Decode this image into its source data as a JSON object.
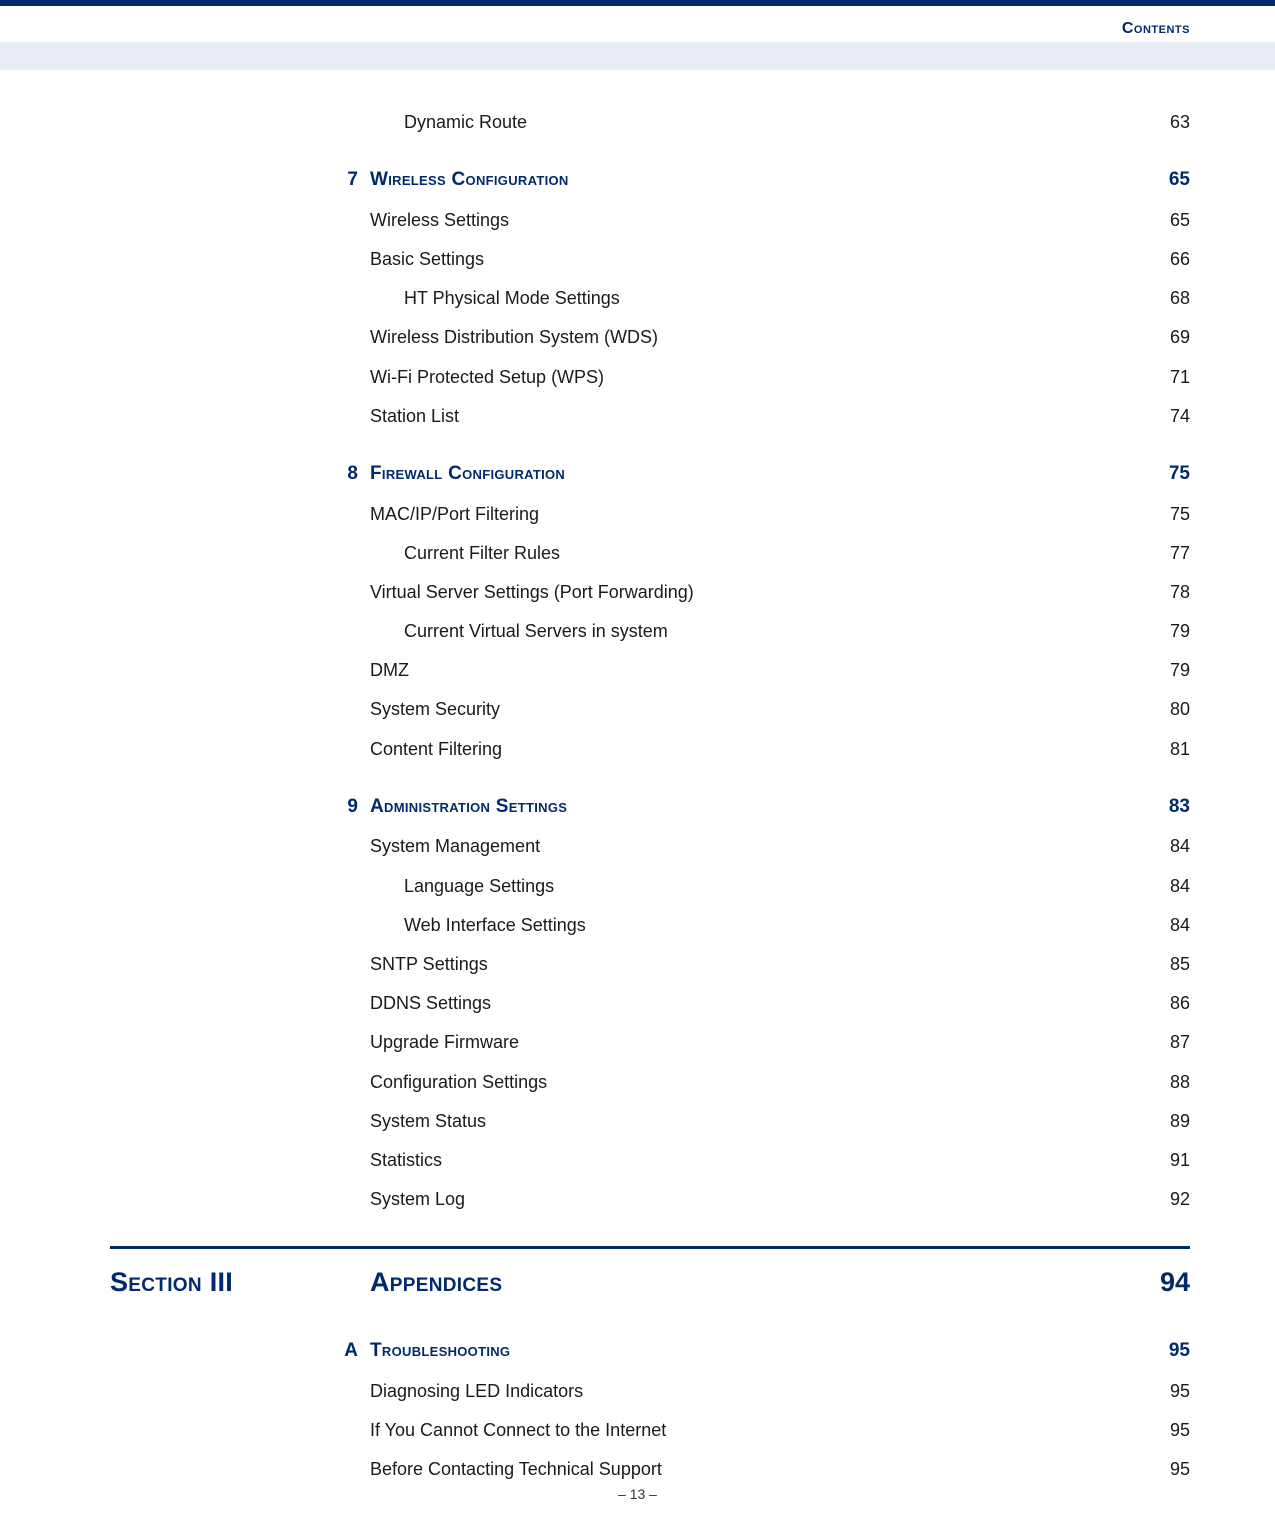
{
  "header": {
    "label": "Contents"
  },
  "colors": {
    "brand": "#002a6c",
    "band": "#e9eef5",
    "text": "#1a1a1a"
  },
  "toc_blocks": [
    {
      "chapter": null,
      "entries": [
        {
          "title": "Dynamic Route",
          "page": "63",
          "indent": 1
        }
      ]
    },
    {
      "chapter": {
        "num": "7",
        "title": "Wireless Configuration",
        "page": "65"
      },
      "entries": [
        {
          "title": "Wireless Settings",
          "page": "65",
          "indent": 0
        },
        {
          "title": "Basic Settings",
          "page": "66",
          "indent": 0
        },
        {
          "title": "HT Physical Mode Settings",
          "page": "68",
          "indent": 1
        },
        {
          "title": "Wireless Distribution System (WDS)",
          "page": "69",
          "indent": 0
        },
        {
          "title": "Wi-Fi Protected Setup (WPS)",
          "page": "71",
          "indent": 0
        },
        {
          "title": "Station List",
          "page": "74",
          "indent": 0
        }
      ]
    },
    {
      "chapter": {
        "num": "8",
        "title": "Firewall Configuration",
        "page": "75"
      },
      "entries": [
        {
          "title": "MAC/IP/Port Filtering",
          "page": "75",
          "indent": 0
        },
        {
          "title": "Current Filter Rules",
          "page": "77",
          "indent": 1
        },
        {
          "title": "Virtual Server Settings (Port Forwarding)",
          "page": "78",
          "indent": 0
        },
        {
          "title": "Current Virtual Servers in system",
          "page": "79",
          "indent": 1
        },
        {
          "title": "DMZ",
          "page": "79",
          "indent": 0
        },
        {
          "title": "System Security",
          "page": "80",
          "indent": 0
        },
        {
          "title": "Content Filtering",
          "page": "81",
          "indent": 0
        }
      ]
    },
    {
      "chapter": {
        "num": "9",
        "title": "Administration Settings",
        "page": "83"
      },
      "entries": [
        {
          "title": "System Management",
          "page": "84",
          "indent": 0
        },
        {
          "title": "Language Settings",
          "page": "84",
          "indent": 1
        },
        {
          "title": "Web Interface Settings",
          "page": "84",
          "indent": 1
        },
        {
          "title": "SNTP Settings",
          "page": "85",
          "indent": 0
        },
        {
          "title": "DDNS Settings",
          "page": "86",
          "indent": 0
        },
        {
          "title": "Upgrade Firmware",
          "page": "87",
          "indent": 0
        },
        {
          "title": "Configuration Settings",
          "page": "88",
          "indent": 0
        },
        {
          "title": "System Status",
          "page": "89",
          "indent": 0
        },
        {
          "title": "Statistics",
          "page": "91",
          "indent": 0
        },
        {
          "title": "System Log",
          "page": "92",
          "indent": 0
        }
      ]
    }
  ],
  "section": {
    "label": "Section III",
    "title": "Appendices",
    "page": "94"
  },
  "appendix_blocks": [
    {
      "chapter": {
        "num": "A",
        "title": "Troubleshooting",
        "page": "95"
      },
      "entries": [
        {
          "title": "Diagnosing LED Indicators",
          "page": "95",
          "indent": 0
        },
        {
          "title": "If You Cannot Connect to the Internet",
          "page": "95",
          "indent": 0
        },
        {
          "title": "Before Contacting Technical Support",
          "page": "95",
          "indent": 0
        }
      ]
    }
  ],
  "page_number": "–  13  –"
}
